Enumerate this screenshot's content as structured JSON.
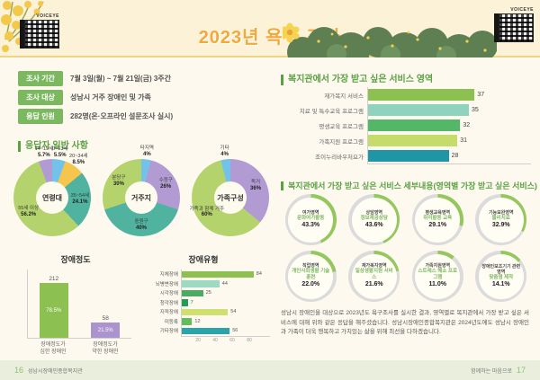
{
  "banner": {
    "title": "2023년 욕구 조사",
    "voiceye_label": "VOICEYE"
  },
  "info": {
    "items": [
      {
        "label": "조사 기간",
        "value": "7월 3일(월) ~ 7월 21일(금) 3주간"
      },
      {
        "label": "조사 대상",
        "value": "성남시 거주 장애인 및 가족"
      },
      {
        "label": "응답 인원",
        "value": "282명(온·오프라인 설문조사 실시)"
      }
    ]
  },
  "sections": {
    "respondent": "응답자 일반 사항",
    "service_area": "복지관에서 가장 받고 싶은 서비스 영역",
    "service_detail": "복지관에서 가장 받고 싶은 서비스 세부내용(영역별 가장 받고 싶은 서비스)"
  },
  "chart_data": [
    {
      "type": "pie",
      "title": "연령대",
      "segments": [
        {
          "label": "0~13세",
          "value": 5.5,
          "color": "#72c2e9"
        },
        {
          "label": "20~34세",
          "value": 8.5,
          "color": "#f6c54d"
        },
        {
          "label": "35~54세",
          "value": 24.1,
          "color": "#4fb3a0"
        },
        {
          "label": "55세 이상",
          "value": 56.2,
          "color": "#b5d36c"
        },
        {
          "label": "14~19세",
          "value": 5.7,
          "color": "#b29bd3"
        }
      ]
    },
    {
      "type": "pie",
      "title": "거주지",
      "segments": [
        {
          "label": "타지역",
          "value": 4,
          "color": "#72c2e9"
        },
        {
          "label": "수정구",
          "value": 26,
          "color": "#b29bd3"
        },
        {
          "label": "중원구",
          "value": 40,
          "color": "#4fb3a0"
        },
        {
          "label": "분당구",
          "value": 30,
          "color": "#b5d36c"
        }
      ]
    },
    {
      "type": "pie",
      "title": "가족구성",
      "segments": [
        {
          "label": "독거",
          "value": 36,
          "color": "#b29bd3"
        },
        {
          "label": "가족과 함께 거주",
          "value": 60,
          "color": "#b5d36c"
        },
        {
          "label": "기타",
          "value": 4,
          "color": "#72c2e9"
        }
      ]
    },
    {
      "type": "bar",
      "title": "장애정도",
      "categories": [
        "장애정도가 심한 장애인",
        "장애정도가 약한 장애인"
      ],
      "values": [
        212,
        58
      ],
      "bar_labels": [
        "78.5%",
        "21.5%"
      ],
      "colors": [
        "#8cc152",
        "#ab93ce"
      ]
    },
    {
      "type": "bar",
      "orientation": "horizontal",
      "title": "장애유형",
      "categories": [
        "지체장애",
        "뇌병변장애",
        "시각장애",
        "청각장애",
        "지적장애",
        "미등록",
        "기타장애"
      ],
      "values": [
        84,
        44,
        25,
        7,
        54,
        12,
        56
      ],
      "colors": [
        "#8cc152",
        "#9ed9c4",
        "#4cab62",
        "#1f9e54",
        "#cfe070",
        "#63bb5e",
        "#2aa3ab"
      ],
      "xticks": [
        20,
        40,
        60,
        80
      ],
      "xlim": [
        0,
        90
      ]
    },
    {
      "type": "bar",
      "orientation": "horizontal",
      "title": "복지관에서 가장 받고 싶은 서비스 영역",
      "categories": [
        "재가복지 서비스",
        "치료 및 특수교육 프로그램",
        "평생교육 프로그램",
        "가족지원 프로그램",
        "조이누리바우처요가"
      ],
      "values": [
        37,
        35,
        32,
        31,
        28
      ],
      "colors": [
        "#8cc152",
        "#8fd2bd",
        "#54b667",
        "#c6dc6a",
        "#1f96a6"
      ],
      "xlim": [
        0,
        40
      ]
    },
    {
      "type": "donut-gauges",
      "title": "복지관에서 가장 받고 싶은 서비스 세부내용",
      "items": [
        {
          "area": "여가영역",
          "service": "문화여가활동",
          "pct": 43.3
        },
        {
          "area": "상담영역",
          "service": "정보제공상담",
          "pct": 43.6
        },
        {
          "area": "평생교육영역",
          "service": "취미활동 교육",
          "pct": 29.1
        },
        {
          "area": "기능보완영역",
          "service": "물리치료",
          "pct": 32.9
        },
        {
          "area": "직업영역",
          "service": "개인사회생활 기술훈련",
          "pct": 22.0
        },
        {
          "area": "재가복지영역",
          "service": "일상생활지원 서비스",
          "pct": 21.6
        },
        {
          "area": "가족지원영역",
          "service": "스트레스 해소 프로그램",
          "pct": 11.0
        },
        {
          "area": "장애인보조기기 관련영역",
          "service": "맞춤형 제작",
          "pct": 14.1
        }
      ]
    }
  ],
  "paragraph": "성남시 장애인을 대상으로 2023년도 욕구조사를 실시한 결과, 영역별로 복지관에서 가장 받고 싶은 서비스에 대해 위와 같은 응답을 해주셨습니다. 성남시장애인종합복지관은 2024년도에도 성남시 장애인과 가족이 더욱 행복하고 가치있는 삶을 위해 최선을 다하겠습니다.",
  "footer": {
    "left_page": "16",
    "left_text": "성남시장애인종합복지관",
    "right_text": "함께하는 마음으로",
    "right_page": "17"
  }
}
